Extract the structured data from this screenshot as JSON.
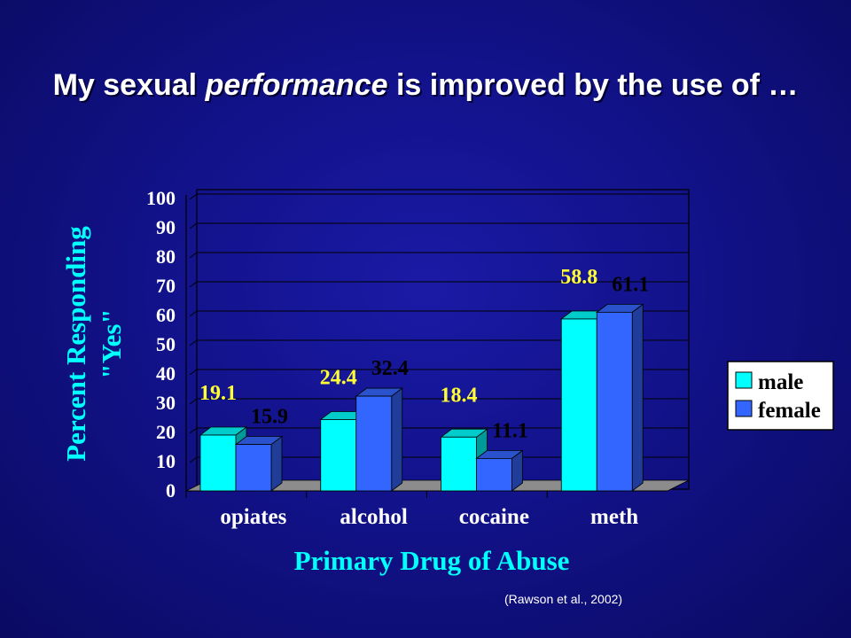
{
  "slide": {
    "title_part1": "My sexual ",
    "title_italic": "performance",
    "title_part2": " is improved by the use of …",
    "citation": "(Rawson et al., 2002)"
  },
  "chart_data": {
    "type": "bar",
    "categories": [
      "opiates",
      "alcohol",
      "cocaine",
      "meth"
    ],
    "series": [
      {
        "name": "male",
        "values": [
          19.1,
          24.4,
          18.4,
          58.8
        ],
        "color": "#00ffff",
        "label_color": "#ffff33"
      },
      {
        "name": "female",
        "values": [
          15.9,
          32.4,
          11.1,
          61.1
        ],
        "color": "#3366ff",
        "label_color": "#000000"
      }
    ],
    "xlabel": "Primary Drug of Abuse",
    "ylabel_line1": "Percent Responding",
    "ylabel_line2": "\"Yes\"",
    "ylim": [
      0,
      100
    ],
    "yticks": [
      "0",
      "10",
      "20",
      "30",
      "40",
      "50",
      "60",
      "70",
      "80",
      "90",
      "100"
    ],
    "grid": true,
    "legend_position": "right",
    "style": "3d-bars"
  }
}
